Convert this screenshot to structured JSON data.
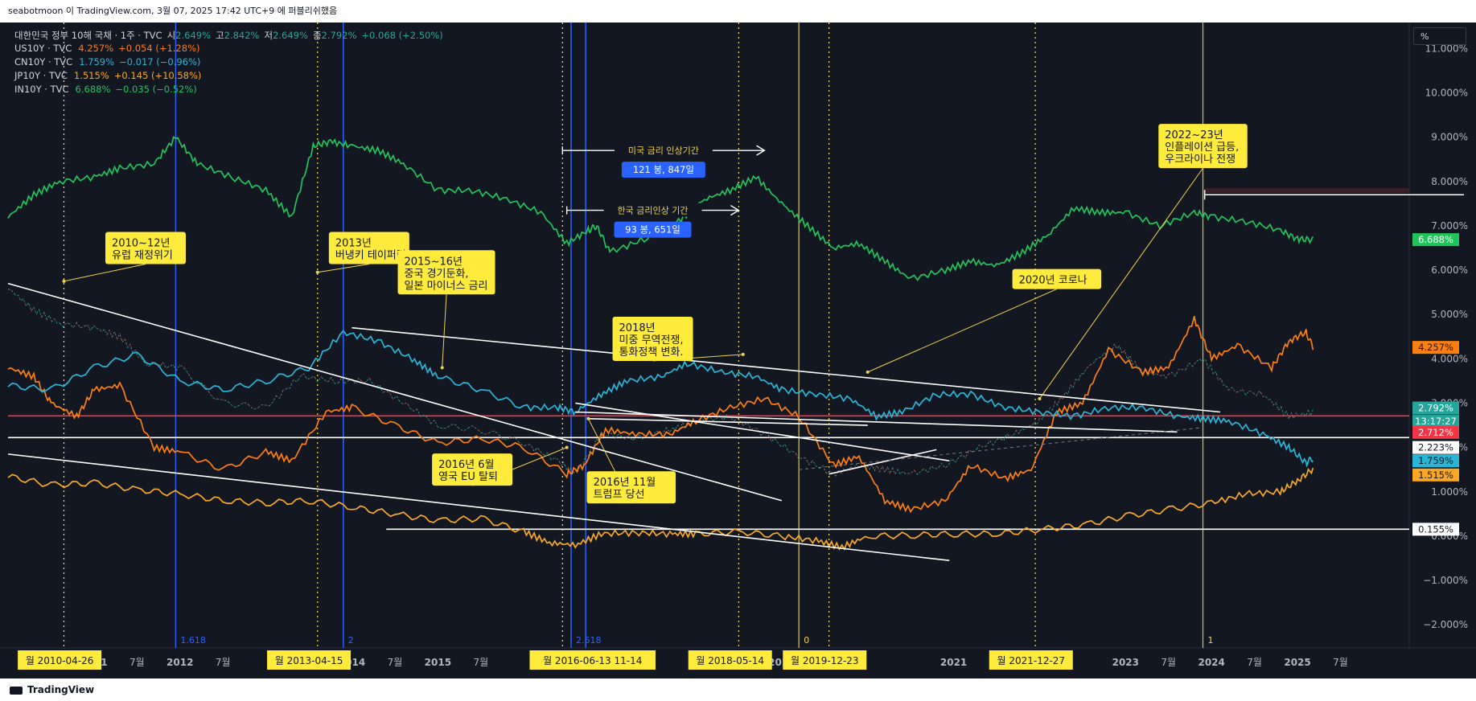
{
  "header": {
    "text": "seabotmoon 이 TradingView.com, 3월 07, 2025 17:42 UTC+9 에 퍼블리쉬했음"
  },
  "footer": {
    "brand": "TradingView"
  },
  "toolbar": {
    "unit_button": "%"
  },
  "legend": [
    {
      "label": "대한민국 정부 10해 국채 · 1주 · TVC",
      "parts": [
        "시",
        "2.649%",
        "고",
        "2.842%",
        "저",
        "2.649%",
        "종",
        "2.792%",
        "+0.068 (+2.50%)"
      ],
      "color": "#26a69a"
    },
    {
      "label": "US10Y · TVC",
      "value": "4.257%",
      "change": "+0.054 (+1.28%)",
      "color": "#ff7f0e"
    },
    {
      "label": "CN10Y · TVC",
      "value": "1.759%",
      "change": "−0.017 (−0.96%)",
      "color": "#29b6d6"
    },
    {
      "label": "JP10Y · TVC",
      "value": "1.515%",
      "change": "+0.145 (+10.58%)",
      "color": "#f9a825"
    },
    {
      "label": "IN10Y · TVC",
      "value": "6.688%",
      "change": "−0.035 (−0.52%)",
      "color": "#21c35b"
    }
  ],
  "chart_data": {
    "type": "line",
    "title": "",
    "xlabel": "",
    "ylabel": "",
    "x_range": [
      2010.0,
      2026.3
    ],
    "ylim": [
      -2.45,
      11.55
    ],
    "y_ticks": [
      "11.000%",
      "10.000%",
      "9.000%",
      "8.000%",
      "7.000%",
      "6.000%",
      "5.000%",
      "4.000%",
      "3.000%",
      "2.000%",
      "1.000%",
      "0.000%",
      "−1.000%",
      "−2.000%"
    ],
    "x_ticks": [
      {
        "label": "2011",
        "x": 2011.0,
        "bold": true
      },
      {
        "label": "7월",
        "x": 2011.5
      },
      {
        "label": "2012",
        "x": 2012.0,
        "bold": true
      },
      {
        "label": "7월",
        "x": 2012.5
      },
      {
        "label": "2014",
        "x": 2014.0,
        "bold": true
      },
      {
        "label": "7월",
        "x": 2014.5
      },
      {
        "label": "2015",
        "x": 2015.0,
        "bold": true
      },
      {
        "label": "7월",
        "x": 2015.5
      },
      {
        "label": "7월",
        "x": 2016.6
      },
      {
        "label": "2019",
        "x": 2019.0,
        "bold": true
      },
      {
        "label": "2021",
        "x": 2021.0,
        "bold": true
      },
      {
        "label": "7월",
        "x": 2021.5
      },
      {
        "label": "2023",
        "x": 2023.0,
        "bold": true
      },
      {
        "label": "7월",
        "x": 2023.5
      },
      {
        "label": "2024",
        "x": 2024.0,
        "bold": true
      },
      {
        "label": "7월",
        "x": 2024.5
      },
      {
        "label": "2025",
        "x": 2025.0,
        "bold": true
      },
      {
        "label": "7월",
        "x": 2025.5
      }
    ],
    "series": [
      {
        "name": "대한민국 정부 10해 국채",
        "color": "#26a69a",
        "style": "candles",
        "x": [
          2010.0,
          2010.3,
          2010.6,
          2011.0,
          2011.3,
          2011.6,
          2012.0,
          2012.5,
          2013.0,
          2013.4,
          2013.8,
          2014.2,
          2014.6,
          2015.0,
          2015.5,
          2016.0,
          2016.4,
          2016.6,
          2016.9,
          2017.3,
          2017.7,
          2018.0,
          2018.4,
          2018.8,
          2019.2,
          2019.6,
          2019.9,
          2020.2,
          2020.5,
          2020.9,
          2021.3,
          2021.7,
          2022.0,
          2022.3,
          2022.6,
          2022.9,
          2023.2,
          2023.5,
          2023.9,
          2024.2,
          2024.6,
          2024.9,
          2025.18
        ],
        "y": [
          5.6,
          5.1,
          4.8,
          4.7,
          4.5,
          3.9,
          3.8,
          3.0,
          2.9,
          3.6,
          3.5,
          3.5,
          3.0,
          2.5,
          2.4,
          2.1,
          1.7,
          1.4,
          2.3,
          2.2,
          2.4,
          2.6,
          2.7,
          2.3,
          1.8,
          1.4,
          1.6,
          1.5,
          1.4,
          1.6,
          2.0,
          2.3,
          2.6,
          3.2,
          3.9,
          4.3,
          3.7,
          3.6,
          4.0,
          3.3,
          3.2,
          2.7,
          2.79
        ]
      },
      {
        "name": "US10Y",
        "color": "#ff7f0e",
        "x": [
          2010.0,
          2010.3,
          2010.5,
          2010.8,
          2011.0,
          2011.3,
          2011.7,
          2012.0,
          2012.5,
          2013.0,
          2013.3,
          2013.7,
          2014.0,
          2014.5,
          2015.0,
          2015.5,
          2016.0,
          2016.5,
          2016.7,
          2016.95,
          2017.3,
          2017.7,
          2018.0,
          2018.4,
          2018.8,
          2019.2,
          2019.6,
          2019.9,
          2020.2,
          2020.5,
          2020.9,
          2021.2,
          2021.6,
          2021.9,
          2022.2,
          2022.5,
          2022.8,
          2023.2,
          2023.5,
          2023.8,
          2024.0,
          2024.3,
          2024.7,
          2024.9,
          2025.1,
          2025.18
        ],
        "y": [
          3.8,
          3.6,
          3.0,
          2.7,
          3.3,
          3.4,
          2.0,
          1.9,
          1.5,
          1.9,
          1.7,
          2.8,
          2.9,
          2.5,
          2.1,
          2.2,
          2.0,
          1.4,
          1.6,
          2.4,
          2.3,
          2.3,
          2.6,
          2.9,
          3.1,
          2.7,
          1.6,
          1.8,
          0.8,
          0.6,
          0.8,
          1.6,
          1.3,
          1.5,
          2.8,
          3.0,
          4.2,
          3.7,
          3.8,
          4.9,
          4.0,
          4.3,
          3.8,
          4.4,
          4.6,
          4.257
        ]
      },
      {
        "name": "CN10Y",
        "color": "#29b6d6",
        "x": [
          2010.0,
          2010.5,
          2011.0,
          2011.5,
          2012.0,
          2012.5,
          2013.0,
          2013.5,
          2013.9,
          2014.3,
          2014.7,
          2015.0,
          2015.5,
          2016.0,
          2016.4,
          2016.6,
          2016.9,
          2017.2,
          2017.6,
          2017.9,
          2018.3,
          2018.7,
          2019.0,
          2019.4,
          2019.8,
          2020.1,
          2020.4,
          2020.8,
          2021.2,
          2021.6,
          2022.0,
          2022.4,
          2022.8,
          2023.2,
          2023.6,
          2023.9,
          2024.2,
          2024.6,
          2024.9,
          2025.1,
          2025.18
        ],
        "y": [
          3.4,
          3.3,
          3.8,
          4.1,
          3.5,
          3.3,
          3.5,
          3.8,
          4.6,
          4.4,
          4.0,
          3.6,
          3.3,
          2.9,
          2.9,
          2.8,
          3.2,
          3.5,
          3.6,
          3.9,
          3.7,
          3.6,
          3.3,
          3.2,
          3.1,
          2.7,
          2.8,
          3.2,
          3.2,
          2.9,
          2.8,
          2.7,
          2.9,
          2.9,
          2.7,
          2.65,
          2.6,
          2.3,
          2.0,
          1.65,
          1.759
        ]
      },
      {
        "name": "JP10Y",
        "color": "#f9a825",
        "x": [
          2010.0,
          2010.5,
          2011.0,
          2011.5,
          2012.0,
          2012.5,
          2013.0,
          2013.5,
          2014.0,
          2014.5,
          2015.0,
          2015.5,
          2016.0,
          2016.3,
          2016.6,
          2016.9,
          2017.3,
          2017.7,
          2018.0,
          2018.5,
          2019.0,
          2019.4,
          2019.7,
          2020.0,
          2020.5,
          2021.0,
          2021.5,
          2022.0,
          2022.5,
          2023.0,
          2023.5,
          2024.0,
          2024.4,
          2024.8,
          2025.0,
          2025.18
        ],
        "y": [
          1.35,
          1.15,
          1.2,
          1.05,
          0.95,
          0.8,
          0.75,
          0.8,
          0.65,
          0.5,
          0.35,
          0.4,
          0.1,
          -0.15,
          -0.2,
          0.05,
          0.08,
          0.05,
          0.05,
          0.1,
          0.0,
          -0.1,
          -0.25,
          0.0,
          0.02,
          0.05,
          0.05,
          0.15,
          0.25,
          0.45,
          0.6,
          0.75,
          0.95,
          1.0,
          1.25,
          1.515
        ]
      },
      {
        "name": "IN10Y",
        "color": "#21c35b",
        "x": [
          2010.0,
          2010.3,
          2010.6,
          2011.0,
          2011.3,
          2011.7,
          2011.95,
          2012.2,
          2012.6,
          2013.0,
          2013.3,
          2013.55,
          2013.75,
          2014.0,
          2014.3,
          2014.6,
          2015.0,
          2015.4,
          2015.8,
          2016.2,
          2016.5,
          2016.75,
          2016.85,
          2017.0,
          2017.4,
          2017.8,
          2018.1,
          2018.4,
          2018.7,
          2019.0,
          2019.3,
          2019.6,
          2019.9,
          2020.2,
          2020.5,
          2020.9,
          2021.2,
          2021.5,
          2021.8,
          2022.1,
          2022.4,
          2022.7,
          2023.0,
          2023.4,
          2023.8,
          2024.0,
          2024.4,
          2024.8,
          2025.0,
          2025.18
        ],
        "y": [
          7.2,
          7.7,
          8.0,
          8.1,
          8.3,
          8.4,
          9.0,
          8.4,
          8.1,
          7.8,
          7.2,
          8.8,
          8.9,
          8.8,
          8.7,
          8.4,
          7.8,
          7.8,
          7.6,
          7.3,
          6.6,
          6.9,
          7.0,
          6.4,
          6.7,
          7.1,
          7.6,
          7.8,
          8.1,
          7.5,
          7.0,
          6.5,
          6.6,
          6.2,
          5.8,
          6.0,
          6.2,
          6.1,
          6.4,
          6.8,
          7.4,
          7.3,
          7.3,
          7.0,
          7.3,
          7.2,
          7.1,
          6.9,
          6.7,
          6.688
        ]
      }
    ],
    "price_labels": [
      {
        "text": "6.688%",
        "y": 6.688,
        "color": "#21c35b"
      },
      {
        "text": "4.257%",
        "y": 4.257,
        "color": "#ff7f0e"
      },
      {
        "text": "2.792%",
        "y": 2.89,
        "color": "#26a69a"
      },
      {
        "text": "13:17:27",
        "y": 2.59,
        "color": "#26a69a"
      },
      {
        "text": "2.712%",
        "y": 2.34,
        "color": "#f23645"
      },
      {
        "text": "2.223%",
        "y": 2.0,
        "color": "#ffffff"
      },
      {
        "text": "1.759%",
        "y": 1.7,
        "color": "#29b6d6"
      },
      {
        "text": "1.515%",
        "y": 1.38,
        "color": "#f9a825"
      },
      {
        "text": "0.155%",
        "y": 0.155,
        "color": "#ffffff"
      }
    ],
    "hlines": [
      {
        "y": 2.712,
        "color": "#f23645"
      },
      {
        "y": 2.223,
        "color": "#ffffff",
        "x1": 2010.0
      },
      {
        "y": 0.155,
        "color": "#ffffff",
        "x1": 2014.4
      }
    ],
    "trendlines": [
      {
        "x1": 2010.0,
        "y1": 5.7,
        "x2": 2019.0,
        "y2": 0.8
      },
      {
        "x1": 2014.0,
        "y1": 4.7,
        "x2": 2024.1,
        "y2": 2.8
      },
      {
        "x1": 2010.0,
        "y1": 1.85,
        "x2": 2020.95,
        "y2": -0.55
      },
      {
        "x1": 2016.6,
        "y1": 2.8,
        "x2": 2023.6,
        "y2": 2.35
      },
      {
        "x1": 2016.75,
        "y1": 2.65,
        "x2": 2020.0,
        "y2": 2.5
      },
      {
        "x1": 2016.6,
        "y1": 3.0,
        "x2": 2020.95,
        "y2": 1.7
      },
      {
        "x1": 2019.55,
        "y1": 1.4,
        "x2": 2020.8,
        "y2": 1.95
      }
    ],
    "vlines_yellow_dotted": [
      2010.65,
      2013.6,
      2016.45,
      2018.5,
      2019.55,
      2021.95
    ],
    "vlines_blue": [
      {
        "x": 2011.95,
        "label": "1.618"
      },
      {
        "x": 2013.9,
        "label": "2"
      },
      {
        "x": 2016.55,
        "label": "2.618"
      },
      {
        "x": 2016.72,
        "label": ""
      }
    ],
    "vlines_yellow_solid": [
      {
        "x": 2019.2,
        "label": "0"
      },
      {
        "x": 2023.9,
        "label": "1"
      }
    ],
    "date_badges": [
      {
        "text": "월 2010-04-26",
        "x": 2010.6
      },
      {
        "text": "월 2013-04-15",
        "x": 2013.5
      },
      {
        "text": "월 2016-06-13  11-14",
        "x": 2016.8
      },
      {
        "text": "월 2018-05-14",
        "x": 2018.4
      },
      {
        "text": "월 2019-12-23",
        "x": 2019.5
      },
      {
        "text": "월 2021-12-27",
        "x": 2021.9
      }
    ],
    "annotations": [
      {
        "lines": [
          "2010~12년",
          "유럽 재정위기"
        ],
        "x": 2011.6,
        "y": 6.5
      },
      {
        "lines": [
          "2013년",
          "버냉키 테이퍼링"
        ],
        "x": 2014.2,
        "y": 6.5
      },
      {
        "lines": [
          "2015~16년",
          "중국 경기둔화,",
          "일본 마이너스 금리"
        ],
        "x": 2015.1,
        "y": 5.95
      },
      {
        "lines": [
          "2018년",
          "미중 무역전쟁,",
          "통화정책 변화."
        ],
        "x": 2017.5,
        "y": 4.45
      },
      {
        "lines": [
          "2020년 코로나"
        ],
        "x": 2022.2,
        "y": 5.8
      },
      {
        "lines": [
          "2022~23년",
          "인플레이션 급등,",
          "우크라이나 전쟁"
        ],
        "x": 2023.9,
        "y": 8.8
      },
      {
        "lines": [
          "2016년 6월",
          "영국 EU 탈퇴"
        ],
        "x": 2015.4,
        "y": 1.5
      },
      {
        "lines": [
          "2016년 11월",
          "트럼프 당선"
        ],
        "x": 2017.25,
        "y": 1.1
      }
    ],
    "ranges": [
      {
        "label": "미국 금리 인상기간",
        "bars": "121 봉, 847일",
        "x1": 2016.45,
        "x2": 2018.8,
        "y": 8.7
      },
      {
        "label": "한국 금리인상 기간",
        "bars": "93 봉, 651일",
        "x1": 2016.5,
        "x2": 2018.5,
        "y": 7.35
      }
    ]
  }
}
